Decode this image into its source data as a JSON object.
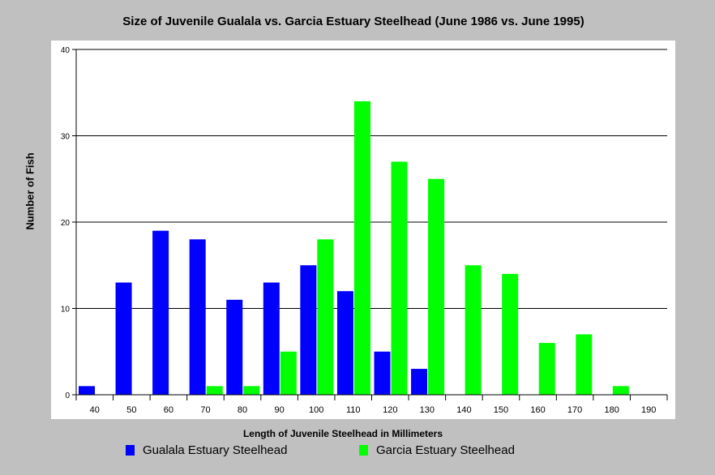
{
  "chart_data": {
    "type": "bar",
    "title": "Size of Juvenile Gualala vs. Garcia Estuary Steelhead (June 1986 vs. June 1995)",
    "xlabel": "Length of Juvenile Steelhead in Millimeters",
    "ylabel": "Number of Fish",
    "categories": [
      "40",
      "50",
      "60",
      "70",
      "80",
      "90",
      "100",
      "110",
      "120",
      "130",
      "140",
      "150",
      "160",
      "170",
      "180",
      "190"
    ],
    "yticks": [
      "0",
      "10",
      "20",
      "30",
      "40"
    ],
    "ylim": [
      0,
      40
    ],
    "grid": true,
    "legend": "bottom",
    "series": [
      {
        "name": "Gualala Estuary Steelhead",
        "color": "#0000ff",
        "values": [
          1,
          13,
          19,
          18,
          11,
          13,
          15,
          12,
          5,
          3,
          0,
          0,
          0,
          0,
          0,
          0
        ]
      },
      {
        "name": "Garcia Estuary Steelhead",
        "color": "#00ff00",
        "values": [
          0,
          0,
          0,
          1,
          1,
          5,
          18,
          34,
          27,
          25,
          15,
          14,
          6,
          7,
          1,
          0
        ]
      }
    ]
  }
}
